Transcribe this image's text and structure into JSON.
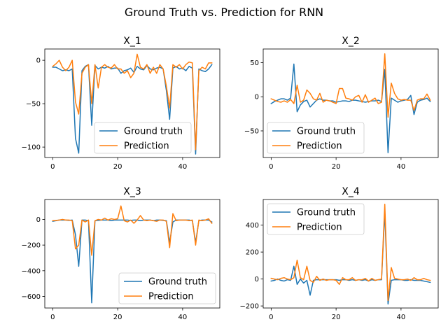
{
  "figure": {
    "suptitle": "Ground Truth vs. Prediction for RNN"
  },
  "colors": {
    "truth": "#1f77b4",
    "pred": "#ff7f0e"
  },
  "chart_data": [
    {
      "type": "line",
      "title": "X_1",
      "xlim": [
        -2.45,
        51.45
      ],
      "ylim": [
        -112,
        13
      ],
      "xticks": [
        0,
        20,
        40
      ],
      "yticks": [
        -100,
        -50,
        0
      ],
      "legend": "bottom-center",
      "x": [
        0,
        1,
        2,
        3,
        4,
        5,
        6,
        7,
        8,
        9,
        10,
        11,
        12,
        13,
        14,
        15,
        16,
        17,
        18,
        19,
        20,
        21,
        22,
        23,
        24,
        25,
        26,
        27,
        28,
        29,
        30,
        31,
        32,
        33,
        34,
        35,
        36,
        37,
        38,
        39,
        40,
        41,
        42,
        43,
        44,
        45,
        46,
        47,
        48,
        49
      ],
      "series": [
        {
          "name": "Ground truth",
          "color": "truth",
          "values": [
            -8,
            -8,
            -10,
            -12,
            -11,
            -12,
            -10,
            -90,
            -107,
            -12,
            -7,
            -5,
            -75,
            -6,
            -10,
            -8,
            -9,
            -7,
            -10,
            -9,
            -9,
            -15,
            -12,
            -11,
            -9,
            -14,
            -7,
            -10,
            -11,
            -6,
            -10,
            -11,
            -9,
            -8,
            -10,
            -35,
            -68,
            -9,
            -7,
            -10,
            -9,
            -12,
            -7,
            -9,
            -108,
            -10,
            -12,
            -13,
            -10,
            -5
          ]
        },
        {
          "name": "Prediction",
          "color": "pred",
          "values": [
            -7,
            -4,
            0,
            -8,
            -12,
            -8,
            0,
            -48,
            -62,
            -15,
            -8,
            -5,
            -50,
            -5,
            -32,
            -8,
            -5,
            -8,
            -9,
            -5,
            -10,
            -10,
            -15,
            -12,
            -20,
            -15,
            7,
            -8,
            -10,
            -5,
            -15,
            -8,
            -15,
            -5,
            -10,
            -30,
            -55,
            -5,
            -8,
            -5,
            -10,
            -5,
            -2,
            -3,
            -103,
            -12,
            -8,
            -10,
            -3,
            -3
          ]
        }
      ]
    },
    {
      "type": "line",
      "title": "X_2",
      "xlim": [
        -2.45,
        51.45
      ],
      "ylim": [
        -89,
        70
      ],
      "xticks": [
        0,
        20,
        40
      ],
      "yticks": [
        -50,
        0,
        50
      ],
      "legend": "bottom-left",
      "x": [
        0,
        1,
        2,
        3,
        4,
        5,
        6,
        7,
        8,
        9,
        10,
        11,
        12,
        13,
        14,
        15,
        16,
        17,
        18,
        19,
        20,
        21,
        22,
        23,
        24,
        25,
        26,
        27,
        28,
        29,
        30,
        31,
        32,
        33,
        34,
        35,
        36,
        37,
        38,
        39,
        40,
        41,
        42,
        43,
        44,
        45,
        46,
        47,
        48,
        49
      ],
      "series": [
        {
          "name": "Ground truth",
          "color": "truth",
          "values": [
            -10,
            -7,
            -5,
            -3,
            -3,
            -5,
            -2,
            48,
            -22,
            -12,
            -7,
            -5,
            -15,
            -10,
            -5,
            -3,
            -5,
            -5,
            -6,
            -6,
            -8,
            -7,
            -6,
            -6,
            -7,
            -5,
            -5,
            -6,
            -7,
            -8,
            -7,
            -6,
            -6,
            -5,
            -7,
            40,
            -82,
            -2,
            -5,
            -8,
            -6,
            -5,
            -4,
            2,
            -26,
            -8,
            -5,
            -4,
            -2,
            -7
          ]
        },
        {
          "name": "Prediction",
          "color": "pred",
          "values": [
            -3,
            -5,
            -7,
            -8,
            -6,
            -8,
            -4,
            -10,
            17,
            -8,
            -5,
            10,
            5,
            -3,
            -5,
            5,
            -8,
            -5,
            -6,
            -8,
            -10,
            12,
            12,
            -2,
            -3,
            -5,
            0,
            2,
            -8,
            3,
            -8,
            -5,
            -2,
            -10,
            -8,
            63,
            -30,
            20,
            5,
            -3,
            -5,
            -4,
            -5,
            -5,
            -20,
            -5,
            -3,
            -3,
            4,
            -5
          ]
        }
      ]
    },
    {
      "type": "line",
      "title": "X_3",
      "xlim": [
        -2.45,
        51.45
      ],
      "ylim": [
        -690,
        155
      ],
      "xticks": [
        0,
        20,
        40
      ],
      "yticks": [
        -600,
        -400,
        -200,
        0
      ],
      "legend": "bottom-right",
      "x": [
        0,
        1,
        2,
        3,
        4,
        5,
        6,
        7,
        8,
        9,
        10,
        11,
        12,
        13,
        14,
        15,
        16,
        17,
        18,
        19,
        20,
        21,
        22,
        23,
        24,
        25,
        26,
        27,
        28,
        29,
        30,
        31,
        32,
        33,
        34,
        35,
        36,
        37,
        38,
        39,
        40,
        41,
        42,
        43,
        44,
        45,
        46,
        47,
        48,
        49
      ],
      "series": [
        {
          "name": "Ground truth",
          "color": "truth",
          "values": [
            -15,
            -10,
            -5,
            -5,
            -5,
            -8,
            -5,
            -120,
            -365,
            -5,
            -5,
            -10,
            -650,
            -10,
            -8,
            -5,
            -5,
            -5,
            -10,
            -5,
            -5,
            -5,
            -5,
            -5,
            -8,
            -5,
            -5,
            -10,
            -5,
            -5,
            -5,
            -10,
            -5,
            -5,
            -8,
            -10,
            -180,
            -20,
            -5,
            -5,
            -5,
            -5,
            -5,
            -10,
            -180,
            -10,
            -5,
            -5,
            -5,
            -20
          ]
        },
        {
          "name": "Prediction",
          "color": "pred",
          "values": [
            -10,
            -8,
            -5,
            0,
            -5,
            -5,
            -10,
            -230,
            -200,
            -5,
            -20,
            -5,
            -280,
            -10,
            0,
            -5,
            10,
            -5,
            5,
            0,
            5,
            105,
            -10,
            -20,
            -5,
            -30,
            -5,
            30,
            -5,
            -10,
            -5,
            -10,
            -15,
            -5,
            -5,
            -15,
            -220,
            45,
            -10,
            -5,
            -5,
            -5,
            -10,
            -5,
            -200,
            -5,
            -10,
            -5,
            5,
            -30
          ]
        }
      ]
    },
    {
      "type": "line",
      "title": "X_4",
      "xlim": [
        -2.45,
        51.45
      ],
      "ylim": [
        -215,
        590
      ],
      "xticks": [
        0,
        20,
        40
      ],
      "yticks": [
        -200,
        0,
        200,
        400
      ],
      "legend": "top-left",
      "x": [
        0,
        1,
        2,
        3,
        4,
        5,
        6,
        7,
        8,
        9,
        10,
        11,
        12,
        13,
        14,
        15,
        16,
        17,
        18,
        19,
        20,
        21,
        22,
        23,
        24,
        25,
        26,
        27,
        28,
        29,
        30,
        31,
        32,
        33,
        34,
        35,
        36,
        37,
        38,
        39,
        40,
        41,
        42,
        43,
        44,
        45,
        46,
        47,
        48,
        49
      ],
      "series": [
        {
          "name": "Ground truth",
          "color": "truth",
          "values": [
            -15,
            -10,
            0,
            -10,
            -15,
            -5,
            -10,
            95,
            -40,
            0,
            -30,
            -10,
            -120,
            -10,
            -5,
            -5,
            -5,
            -5,
            -5,
            -5,
            -5,
            -10,
            -5,
            -5,
            -10,
            -5,
            -10,
            -5,
            -10,
            -5,
            -15,
            -5,
            -10,
            -5,
            -5,
            500,
            -185,
            -10,
            -5,
            -5,
            -5,
            -10,
            -10,
            -5,
            -10,
            -10,
            -10,
            -15,
            -20,
            -25
          ]
        },
        {
          "name": "Prediction",
          "color": "pred",
          "values": [
            5,
            0,
            -5,
            5,
            10,
            0,
            -5,
            10,
            140,
            10,
            -5,
            95,
            -10,
            -25,
            20,
            -10,
            0,
            -10,
            -5,
            -5,
            -10,
            -40,
            10,
            -5,
            -5,
            10,
            -10,
            -5,
            -5,
            5,
            -15,
            5,
            -10,
            -5,
            0,
            555,
            -160,
            85,
            5,
            0,
            -5,
            -5,
            0,
            -10,
            10,
            -5,
            -5,
            5,
            -5,
            -10
          ]
        }
      ]
    }
  ]
}
